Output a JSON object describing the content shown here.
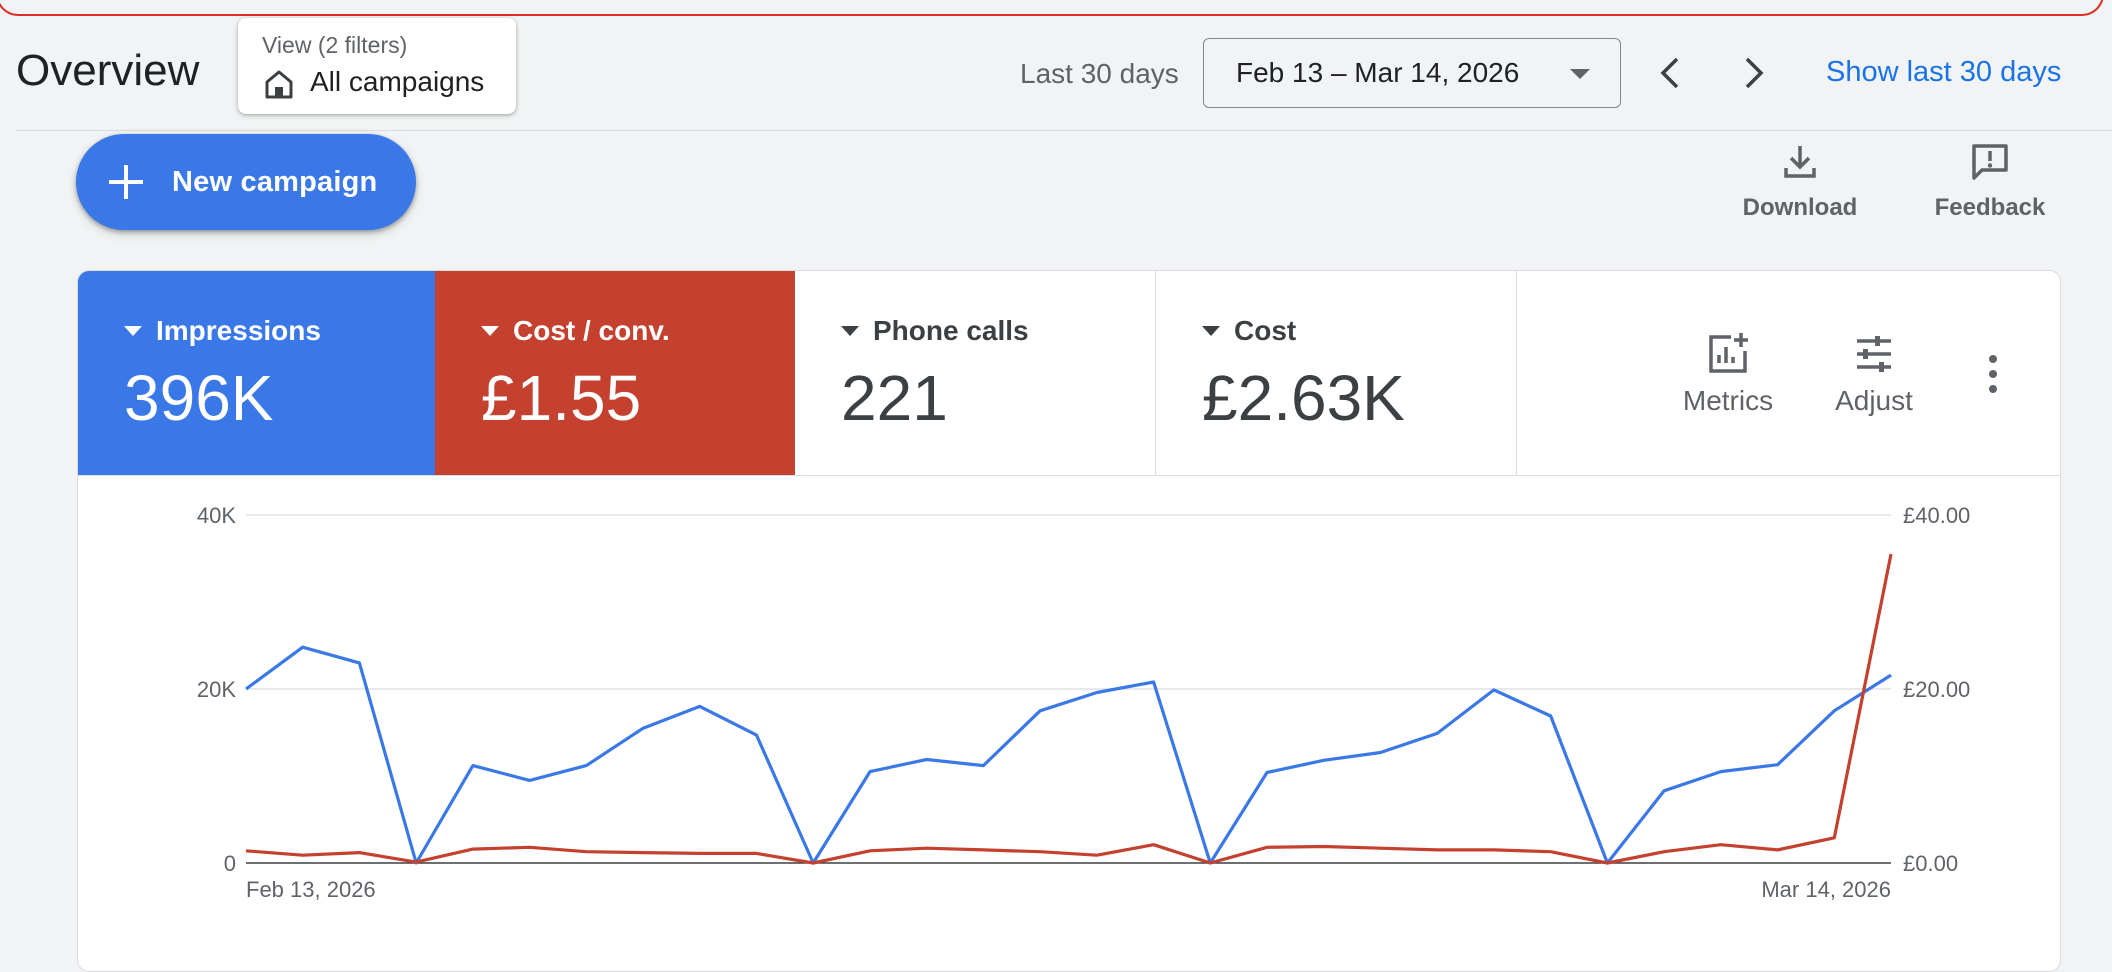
{
  "header": {
    "title": "Overview",
    "view": {
      "label": "View (2 filters)",
      "value": "All campaigns"
    },
    "range_label": "Last 30 days",
    "date_range": "Feb 13 – Mar 14, 2026",
    "show_last": "Show last 30 days"
  },
  "toolbar": {
    "new_campaign": "New campaign",
    "download": "Download",
    "feedback": "Feedback"
  },
  "metrics": [
    {
      "label": "Impressions",
      "value": "396K",
      "color": "#3b78e7"
    },
    {
      "label": "Cost / conv.",
      "value": "£1.55",
      "color": "#c5412f"
    },
    {
      "label": "Phone calls",
      "value": "221"
    },
    {
      "label": "Cost",
      "value": "£2.63K"
    }
  ],
  "metric_controls": {
    "metrics": "Metrics",
    "adjust": "Adjust"
  },
  "chart_data": {
    "type": "line",
    "x_start_label": "Feb 13, 2026",
    "x_end_label": "Mar 14, 2026",
    "y_left": {
      "ticks": [
        "0",
        "20K",
        "40K"
      ],
      "range": [
        0,
        40000
      ]
    },
    "y_right": {
      "ticks": [
        "£0.00",
        "£20.00",
        "£40.00"
      ],
      "range": [
        0,
        40
      ]
    },
    "grid": true,
    "series": [
      {
        "axis": "left",
        "color": "#3b78e7",
        "values": [
          20000,
          24800,
          23000,
          0,
          11200,
          9500,
          11200,
          15500,
          18000,
          14700,
          0,
          10500,
          11900,
          11200,
          17500,
          19600,
          20800,
          0,
          10400,
          11800,
          12700,
          14900,
          19900,
          16900,
          0,
          8300,
          10500,
          11300,
          17500,
          21600
        ]
      },
      {
        "axis": "right",
        "color": "#c5412f",
        "values": [
          1.4,
          0.9,
          1.2,
          0.1,
          1.6,
          1.8,
          1.3,
          1.2,
          1.1,
          1.1,
          0.0,
          1.4,
          1.7,
          1.5,
          1.3,
          0.9,
          2.1,
          0.0,
          1.8,
          1.9,
          1.7,
          1.5,
          1.5,
          1.3,
          0.0,
          1.3,
          2.1,
          1.5,
          2.9,
          35.5
        ]
      }
    ]
  }
}
